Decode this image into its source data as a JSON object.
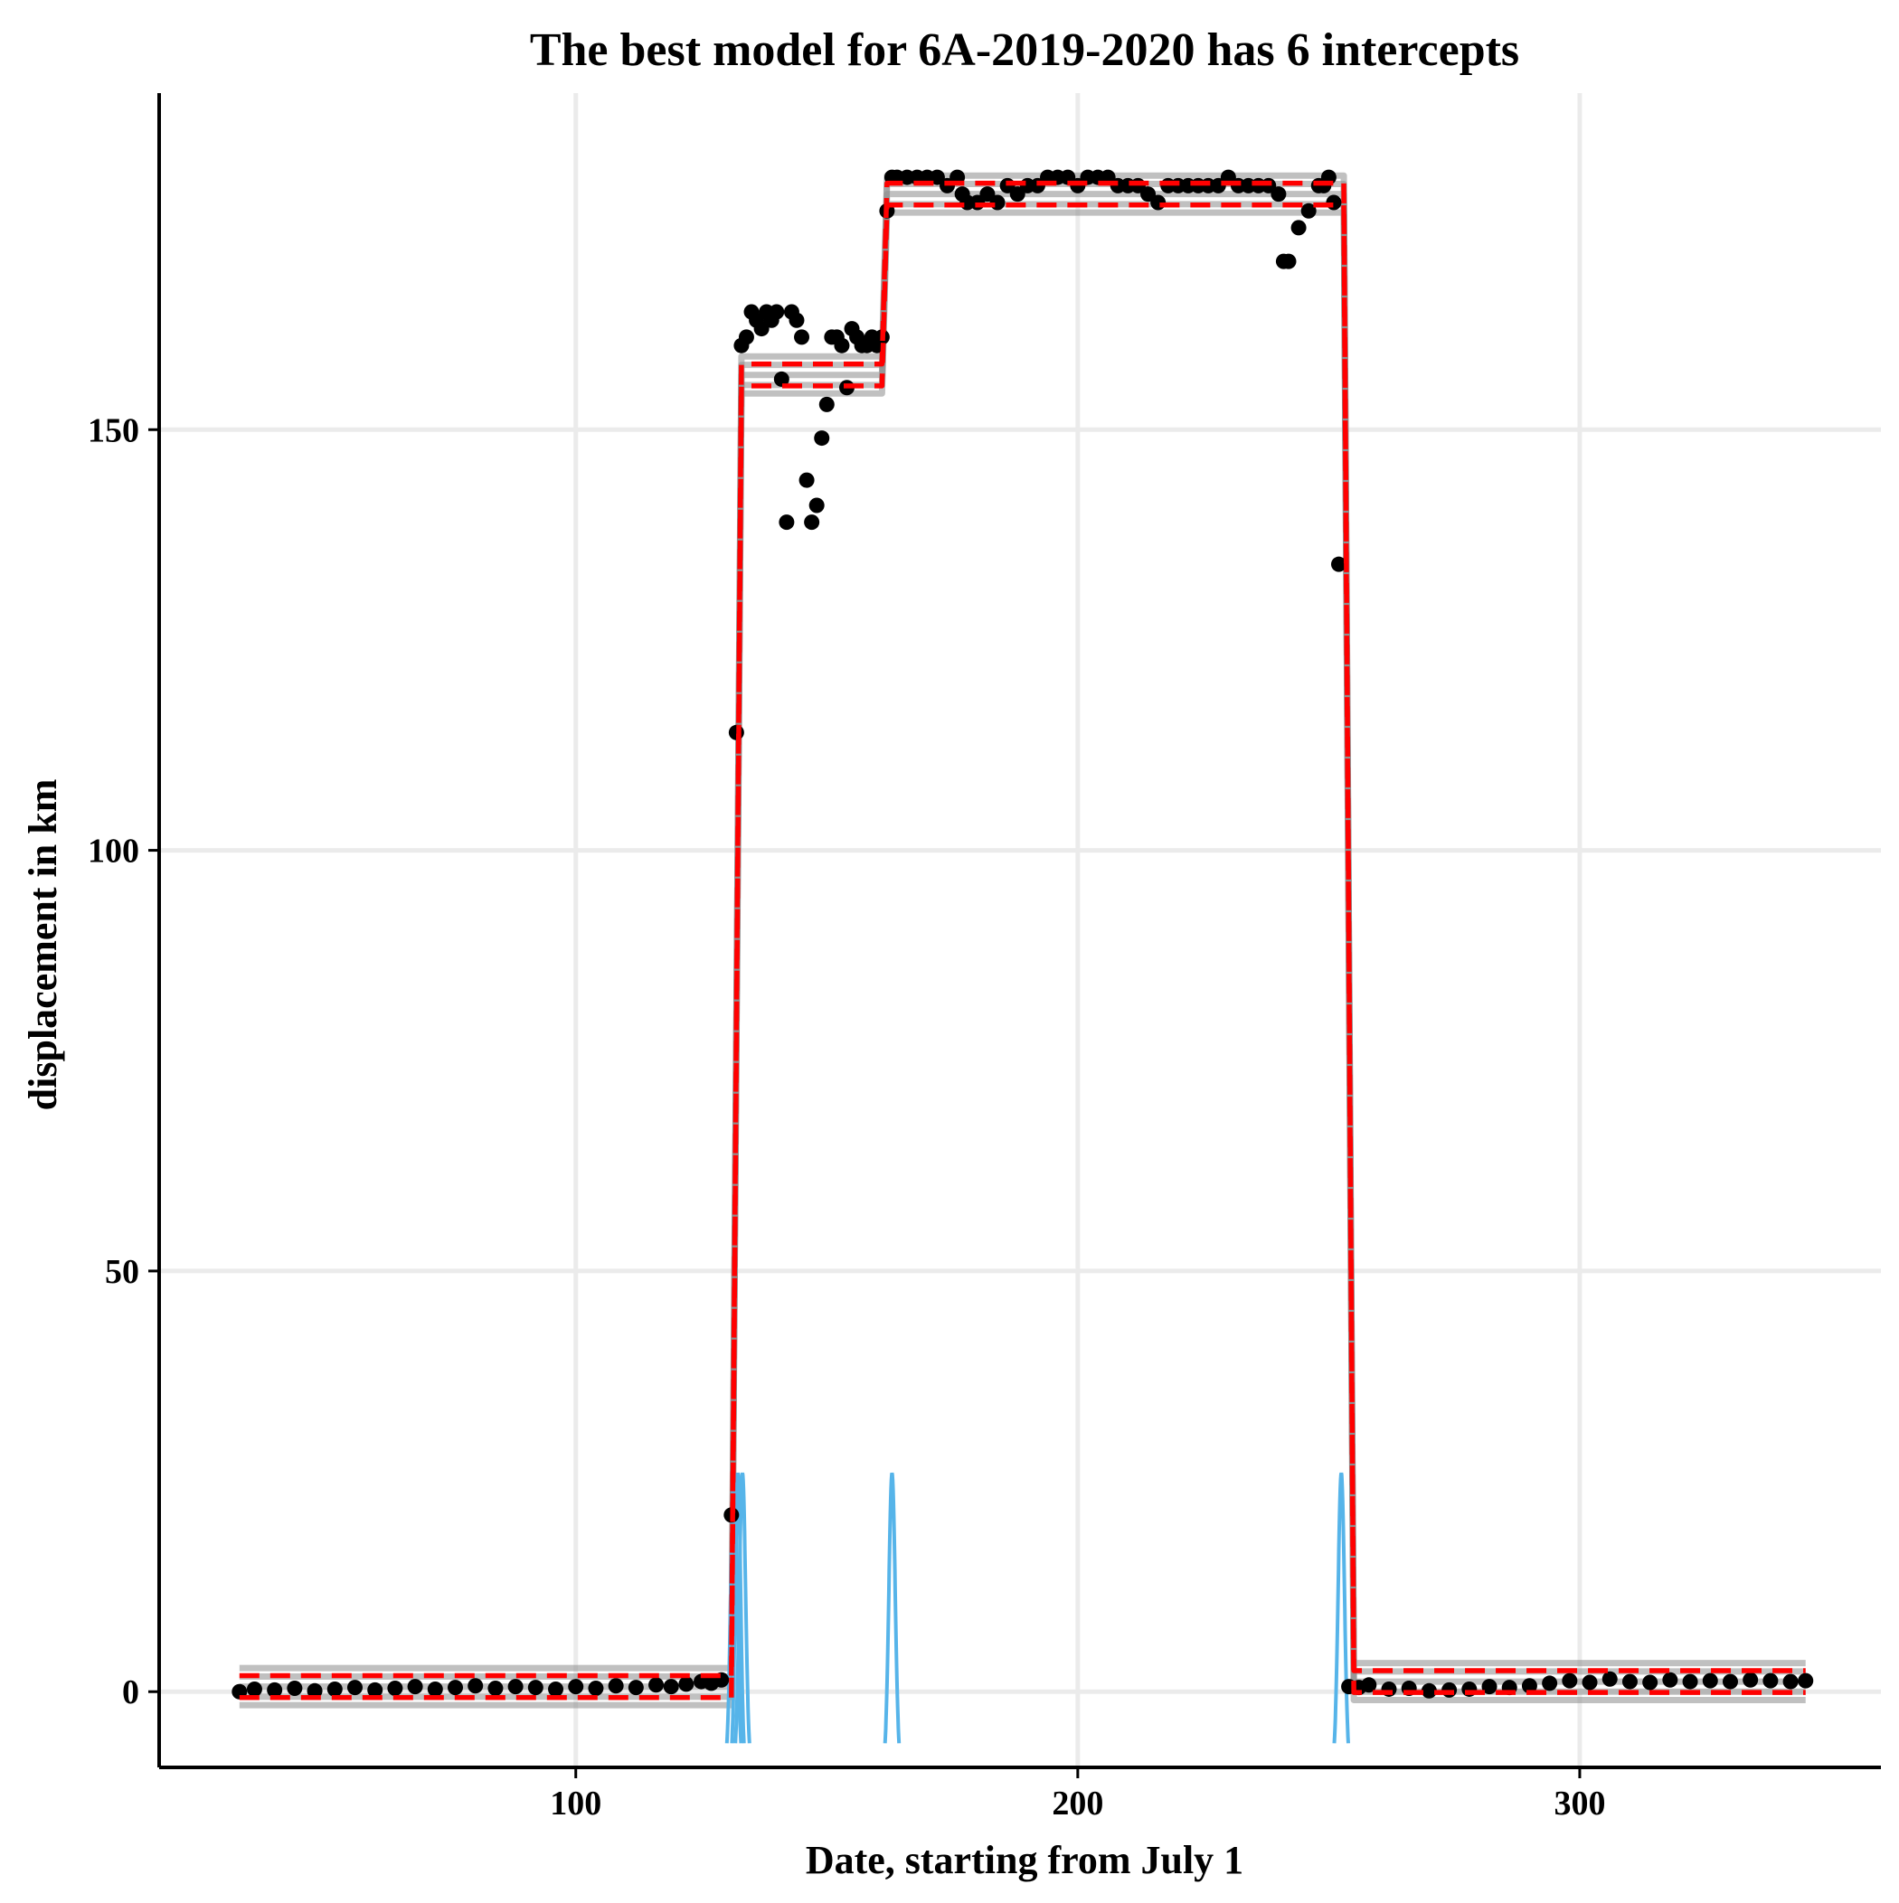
{
  "chart_data": {
    "type": "scatter",
    "title": "The best model for 6A-2019-2020 has 6 intercepts",
    "xlabel": "Date, starting from July 1",
    "ylabel": "displacement in km",
    "xlim": [
      17,
      360
    ],
    "ylim": [
      -9,
      190
    ],
    "x_ticks": [
      100,
      200,
      300
    ],
    "y_ticks": [
      0,
      50,
      100,
      150
    ],
    "grid": true,
    "legend": "none",
    "colors": {
      "points": "#000000",
      "fit_band": "#8c8c8c",
      "model_fit": "#ff0000",
      "changepoint_density": "#56b4e9",
      "grid": "#ebebeb"
    },
    "series": [
      {
        "kind": "observed",
        "points": [
          [
            33,
            0
          ],
          [
            36,
            0.3
          ],
          [
            40,
            0.2
          ],
          [
            44,
            0.4
          ],
          [
            48,
            0.1
          ],
          [
            52,
            0.3
          ],
          [
            56,
            0.5
          ],
          [
            60,
            0.2
          ],
          [
            64,
            0.4
          ],
          [
            68,
            0.6
          ],
          [
            72,
            0.3
          ],
          [
            76,
            0.5
          ],
          [
            80,
            0.7
          ],
          [
            84,
            0.4
          ],
          [
            88,
            0.6
          ],
          [
            92,
            0.5
          ],
          [
            96,
            0.3
          ],
          [
            100,
            0.6
          ],
          [
            104,
            0.4
          ],
          [
            108,
            0.7
          ],
          [
            112,
            0.5
          ],
          [
            116,
            0.8
          ],
          [
            119,
            0.6
          ],
          [
            122,
            0.9
          ],
          [
            125,
            1.2
          ],
          [
            127,
            1.0
          ],
          [
            129,
            1.4
          ],
          [
            131,
            21
          ],
          [
            132,
            114
          ],
          [
            133,
            160
          ],
          [
            134,
            161
          ],
          [
            135,
            164
          ],
          [
            136,
            163
          ],
          [
            137,
            162
          ],
          [
            138,
            164
          ],
          [
            139,
            163
          ],
          [
            140,
            164
          ],
          [
            141,
            156
          ],
          [
            142,
            139
          ],
          [
            143,
            164
          ],
          [
            144,
            163
          ],
          [
            145,
            161
          ],
          [
            146,
            144
          ],
          [
            147,
            139
          ],
          [
            148,
            141
          ],
          [
            149,
            149
          ],
          [
            150,
            153
          ],
          [
            151,
            161
          ],
          [
            152,
            161
          ],
          [
            153,
            160
          ],
          [
            154,
            155
          ],
          [
            155,
            162
          ],
          [
            156,
            161
          ],
          [
            157,
            160
          ],
          [
            158,
            160
          ],
          [
            159,
            161
          ],
          [
            160,
            160
          ],
          [
            161,
            161
          ],
          [
            162,
            176
          ],
          [
            163,
            180
          ],
          [
            164,
            180
          ],
          [
            166,
            180
          ],
          [
            168,
            180
          ],
          [
            170,
            180
          ],
          [
            172,
            180
          ],
          [
            174,
            179
          ],
          [
            176,
            180
          ],
          [
            177,
            178
          ],
          [
            178,
            177
          ],
          [
            180,
            177
          ],
          [
            182,
            178
          ],
          [
            184,
            177
          ],
          [
            186,
            179
          ],
          [
            188,
            178
          ],
          [
            190,
            179
          ],
          [
            192,
            179
          ],
          [
            194,
            180
          ],
          [
            196,
            180
          ],
          [
            198,
            180
          ],
          [
            200,
            179
          ],
          [
            202,
            180
          ],
          [
            204,
            180
          ],
          [
            206,
            180
          ],
          [
            208,
            179
          ],
          [
            210,
            179
          ],
          [
            212,
            179
          ],
          [
            214,
            178
          ],
          [
            216,
            177
          ],
          [
            218,
            179
          ],
          [
            220,
            179
          ],
          [
            222,
            179
          ],
          [
            224,
            179
          ],
          [
            226,
            179
          ],
          [
            228,
            179
          ],
          [
            230,
            180
          ],
          [
            232,
            179
          ],
          [
            234,
            179
          ],
          [
            236,
            179
          ],
          [
            238,
            179
          ],
          [
            240,
            178
          ],
          [
            241,
            170
          ],
          [
            242,
            170
          ],
          [
            244,
            174
          ],
          [
            246,
            176
          ],
          [
            248,
            179
          ],
          [
            249,
            179
          ],
          [
            250,
            180
          ],
          [
            251,
            177
          ],
          [
            252,
            134
          ],
          [
            254,
            0.6
          ],
          [
            256,
            0.5
          ],
          [
            258,
            0.8
          ],
          [
            262,
            0.3
          ],
          [
            266,
            0.4
          ],
          [
            270,
            0.1
          ],
          [
            274,
            0.2
          ],
          [
            278,
            0.3
          ],
          [
            282,
            0.6
          ],
          [
            286,
            0.5
          ],
          [
            290,
            0.7
          ],
          [
            294,
            1.0
          ],
          [
            298,
            1.3
          ],
          [
            302,
            1.1
          ],
          [
            306,
            1.5
          ],
          [
            310,
            1.2
          ],
          [
            314,
            1.1
          ],
          [
            318,
            1.4
          ],
          [
            322,
            1.2
          ],
          [
            326,
            1.3
          ],
          [
            330,
            1.2
          ],
          [
            334,
            1.4
          ],
          [
            338,
            1.3
          ],
          [
            342,
            1.2
          ],
          [
            345,
            1.3
          ]
        ]
      },
      {
        "kind": "model_fit",
        "segments": [
          {
            "x0": 33,
            "x1": 131,
            "y": 0.6
          },
          {
            "x0": 133,
            "x1": 161,
            "y": 156.5
          },
          {
            "x0": 162,
            "x1": 253,
            "y": 178
          },
          {
            "x0": 255,
            "x1": 345,
            "y": 1.2
          }
        ]
      },
      {
        "kind": "changepoint_density",
        "peak_height": 26,
        "peaks": [
          {
            "x": 131.5,
            "w": 1.4
          },
          {
            "x": 132.3,
            "w": 1.2
          },
          {
            "x": 133.2,
            "w": 1.4
          },
          {
            "x": 163,
            "w": 1.4
          },
          {
            "x": 252.5,
            "w": 1.4
          }
        ]
      }
    ]
  }
}
